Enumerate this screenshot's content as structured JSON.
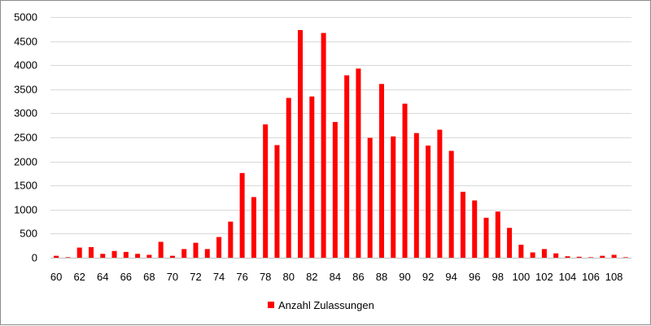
{
  "chart_data": {
    "type": "bar",
    "x": [
      60,
      61,
      62,
      63,
      64,
      65,
      66,
      67,
      68,
      69,
      70,
      71,
      72,
      73,
      74,
      75,
      76,
      77,
      78,
      79,
      80,
      81,
      82,
      83,
      84,
      85,
      86,
      87,
      88,
      89,
      90,
      91,
      92,
      93,
      94,
      95,
      96,
      97,
      98,
      99,
      100,
      101,
      102,
      103,
      104,
      105,
      106,
      107,
      108,
      109
    ],
    "x_tick_labels": [
      "60",
      "62",
      "64",
      "66",
      "68",
      "70",
      "72",
      "74",
      "76",
      "78",
      "80",
      "82",
      "84",
      "86",
      "88",
      "90",
      "92",
      "94",
      "96",
      "98",
      "100",
      "102",
      "104",
      "106",
      "108"
    ],
    "series": [
      {
        "name": "Anzahl Zulassungen",
        "color": "#ff0000",
        "values": [
          40,
          10,
          210,
          220,
          80,
          140,
          120,
          80,
          60,
          330,
          40,
          180,
          310,
          180,
          430,
          750,
          1760,
          1260,
          2770,
          2340,
          3320,
          4730,
          3350,
          4670,
          2820,
          3790,
          3930,
          2490,
          3610,
          2520,
          3200,
          2590,
          2330,
          2660,
          2220,
          1370,
          1190,
          830,
          960,
          620,
          270,
          110,
          180,
          90,
          30,
          20,
          10,
          40,
          60,
          10
        ]
      }
    ],
    "title": "",
    "xlabel": "",
    "ylabel": "",
    "ylim": [
      0,
      5000
    ],
    "y_ticks": [
      0,
      500,
      1000,
      1500,
      2000,
      2500,
      3000,
      3500,
      4000,
      4500,
      5000
    ],
    "y_tick_labels": [
      "0",
      "500",
      "1000",
      "1500",
      "2000",
      "2500",
      "3000",
      "3500",
      "4000",
      "4500",
      "5000"
    ],
    "grid": true,
    "legend": {
      "position": "bottom",
      "entries": [
        "Anzahl Zulassungen"
      ]
    }
  }
}
